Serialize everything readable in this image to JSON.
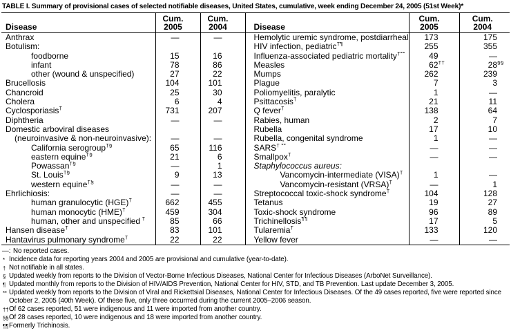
{
  "title": "TABLE I. Summary of provisional cases of selected notifiable diseases, United States, cumulative, week ending December 24, 2005 (51st Week)*",
  "header": {
    "disease": "Disease",
    "cum": "Cum.",
    "y2005": "2005",
    "y2004": "2004"
  },
  "colors": {
    "text": "#000000",
    "background": "#ffffff",
    "rule": "#000000"
  },
  "table": {
    "left_rows": [
      {
        "label": "Anthrax",
        "sup": "",
        "indent": 0,
        "v2005": "—",
        "v2004": "—"
      },
      {
        "label": "Botulism:",
        "sup": "",
        "indent": 0,
        "v2005": "",
        "v2004": ""
      },
      {
        "label": "foodborne",
        "sup": "",
        "indent": 2,
        "v2005": "15",
        "v2004": "16"
      },
      {
        "label": "infant",
        "sup": "",
        "indent": 2,
        "v2005": "78",
        "v2004": "86"
      },
      {
        "label": "other (wound & unspecified)",
        "sup": "",
        "indent": 2,
        "v2005": "27",
        "v2004": "22"
      },
      {
        "label": "Brucellosis",
        "sup": "",
        "indent": 0,
        "v2005": "104",
        "v2004": "101"
      },
      {
        "label": "Chancroid",
        "sup": "",
        "indent": 0,
        "v2005": "25",
        "v2004": "30"
      },
      {
        "label": "Cholera",
        "sup": "",
        "indent": 0,
        "v2005": "6",
        "v2004": "4"
      },
      {
        "label": "Cyclosporiasis",
        "sup": "†",
        "indent": 0,
        "v2005": "731",
        "v2004": "207"
      },
      {
        "label": "Diphtheria",
        "sup": "",
        "indent": 0,
        "v2005": "—",
        "v2004": "—"
      },
      {
        "label": "Domestic arboviral diseases",
        "sup": "",
        "indent": 0,
        "v2005": "",
        "v2004": ""
      },
      {
        "label": "(neuroinvasive & non-neuroinvasive):",
        "sup": "",
        "indent": 1,
        "v2005": "—",
        "v2004": "—"
      },
      {
        "label": "California serogroup",
        "sup": "†§",
        "indent": 2,
        "v2005": "65",
        "v2004": "116"
      },
      {
        "label": "eastern equine",
        "sup": "†§",
        "indent": 2,
        "v2005": "21",
        "v2004": "6"
      },
      {
        "label": "Powassan",
        "sup": "†§",
        "indent": 2,
        "v2005": "—",
        "v2004": "1"
      },
      {
        "label": "St. Louis",
        "sup": "†§",
        "indent": 2,
        "v2005": "9",
        "v2004": "13"
      },
      {
        "label": "western equine",
        "sup": "†§",
        "indent": 2,
        "v2005": "—",
        "v2004": "—"
      },
      {
        "label": "Ehrlichiosis:",
        "sup": "",
        "indent": 0,
        "v2005": "—",
        "v2004": "—"
      },
      {
        "label": "human granulocytic (HGE)",
        "sup": "†",
        "indent": 2,
        "v2005": "662",
        "v2004": "455"
      },
      {
        "label": "human monocytic (HME)",
        "sup": "†",
        "indent": 2,
        "v2005": "459",
        "v2004": "304"
      },
      {
        "label": "human, other and unspecified",
        "sup": " †",
        "indent": 2,
        "v2005": "85",
        "v2004": "66"
      },
      {
        "label": "Hansen disease",
        "sup": "†",
        "indent": 0,
        "v2005": "83",
        "v2004": "101"
      },
      {
        "label": "Hantavirus pulmonary syndrome",
        "sup": "†",
        "indent": 0,
        "v2005": "22",
        "v2004": "22"
      }
    ],
    "right_rows": [
      {
        "label": "Hemolytic uremic syndrome, postdiarrheal",
        "sup": "†",
        "indent": 0,
        "v2005": "173",
        "v2004": "175"
      },
      {
        "label": "HIV infection, pediatric",
        "sup": "†¶",
        "indent": 0,
        "v2005": "255",
        "v2004": "355"
      },
      {
        "label": "Influenza-associated pediatric mortality",
        "sup": "†**",
        "indent": 0,
        "v2005": "49",
        "v2004": "—"
      },
      {
        "label": "Measles",
        "sup": "",
        "indent": 0,
        "v2005": "62",
        "v2005_sup": "††",
        "v2004": "28",
        "v2004_sup": "§§"
      },
      {
        "label": "Mumps",
        "sup": "",
        "indent": 0,
        "v2005": "262",
        "v2004": "239"
      },
      {
        "label": "Plague",
        "sup": "",
        "indent": 0,
        "v2005": "7",
        "v2004": "3"
      },
      {
        "label": "Poliomyelitis, paralytic",
        "sup": "",
        "indent": 0,
        "v2005": "1",
        "v2004": "—"
      },
      {
        "label": "Psittacosis",
        "sup": "†",
        "indent": 0,
        "v2005": "21",
        "v2004": "11"
      },
      {
        "label": "Q fever",
        "sup": "†",
        "indent": 0,
        "v2005": "138",
        "v2004": "64"
      },
      {
        "label": "Rabies, human",
        "sup": "",
        "indent": 0,
        "v2005": "2",
        "v2004": "7"
      },
      {
        "label": "Rubella",
        "sup": "",
        "indent": 0,
        "v2005": "17",
        "v2004": "10"
      },
      {
        "label": "Rubella, congenital syndrome",
        "sup": "",
        "indent": 0,
        "v2005": "1",
        "v2004": "—"
      },
      {
        "label": "SARS",
        "sup": "† **",
        "indent": 0,
        "v2005": "—",
        "v2004": "—"
      },
      {
        "label": "Smallpox",
        "sup": "†",
        "indent": 0,
        "v2005": "—",
        "v2004": "—"
      },
      {
        "label": "Staphylococcus aureus:",
        "sup": "",
        "indent": 0,
        "italic": true,
        "v2005": "",
        "v2004": ""
      },
      {
        "label": "Vancomycin-intermediate (VISA)",
        "sup": "†",
        "indent": 2,
        "v2005": "1",
        "v2004": "—"
      },
      {
        "label": "Vancomycin-resistant (VRSA)",
        "sup": "†",
        "indent": 2,
        "v2005": "—",
        "v2004": "1"
      },
      {
        "label": "Streptococcal toxic-shock syndrome",
        "sup": "†",
        "indent": 0,
        "v2005": "104",
        "v2004": "128"
      },
      {
        "label": "Tetanus",
        "sup": "",
        "indent": 0,
        "v2005": "19",
        "v2004": "27"
      },
      {
        "label": "Toxic-shock syndrome",
        "sup": "",
        "indent": 0,
        "v2005": "96",
        "v2004": "89"
      },
      {
        "label": "Trichinellosis",
        "sup": "¶¶",
        "indent": 0,
        "v2005": "17",
        "v2004": "5"
      },
      {
        "label": "Tularemia",
        "sup": "†",
        "indent": 0,
        "v2005": "133",
        "v2004": "120"
      },
      {
        "label": "Yellow fever",
        "sup": "",
        "indent": 0,
        "v2005": "—",
        "v2004": "—"
      }
    ]
  },
  "footnotes": [
    {
      "marker": "—:",
      "text": "No reported cases."
    },
    {
      "marker": "*",
      "text": "Incidence data for reporting years 2004 and 2005 are provisional and cumulative (year-to-date)."
    },
    {
      "marker": "†",
      "text": "Not notifiable in all states."
    },
    {
      "marker": "§",
      "text": "Updated weekly from reports to the Division of Vector-Borne Infectious Diseases, National Center for Infectious Diseases (ArboNet Surveillance)."
    },
    {
      "marker": "¶",
      "text": "Updated monthly from reports to the Division of HIV/AIDS Prevention, National Center for HIV, STD, and TB Prevention. Last update December 3, 2005."
    },
    {
      "marker": "**",
      "text": "Updated weekly from reports to the Division of Viral and Rickettsial Diseases, National Center for Infectious Diseases. Of the 49 cases reported, five were reported since October 2, 2005 (40th Week). Of these five, only three occurrred during the current 2005–2006 season."
    },
    {
      "marker": "††",
      "text": "Of 62 cases reported, 51 were indigenous and 11 were imported from another country."
    },
    {
      "marker": "§§",
      "text": "Of 28 cases reported, 10 were indigenous and 18 were imported from another country."
    },
    {
      "marker": "¶¶",
      "text": "Formerly Trichinosis."
    }
  ]
}
